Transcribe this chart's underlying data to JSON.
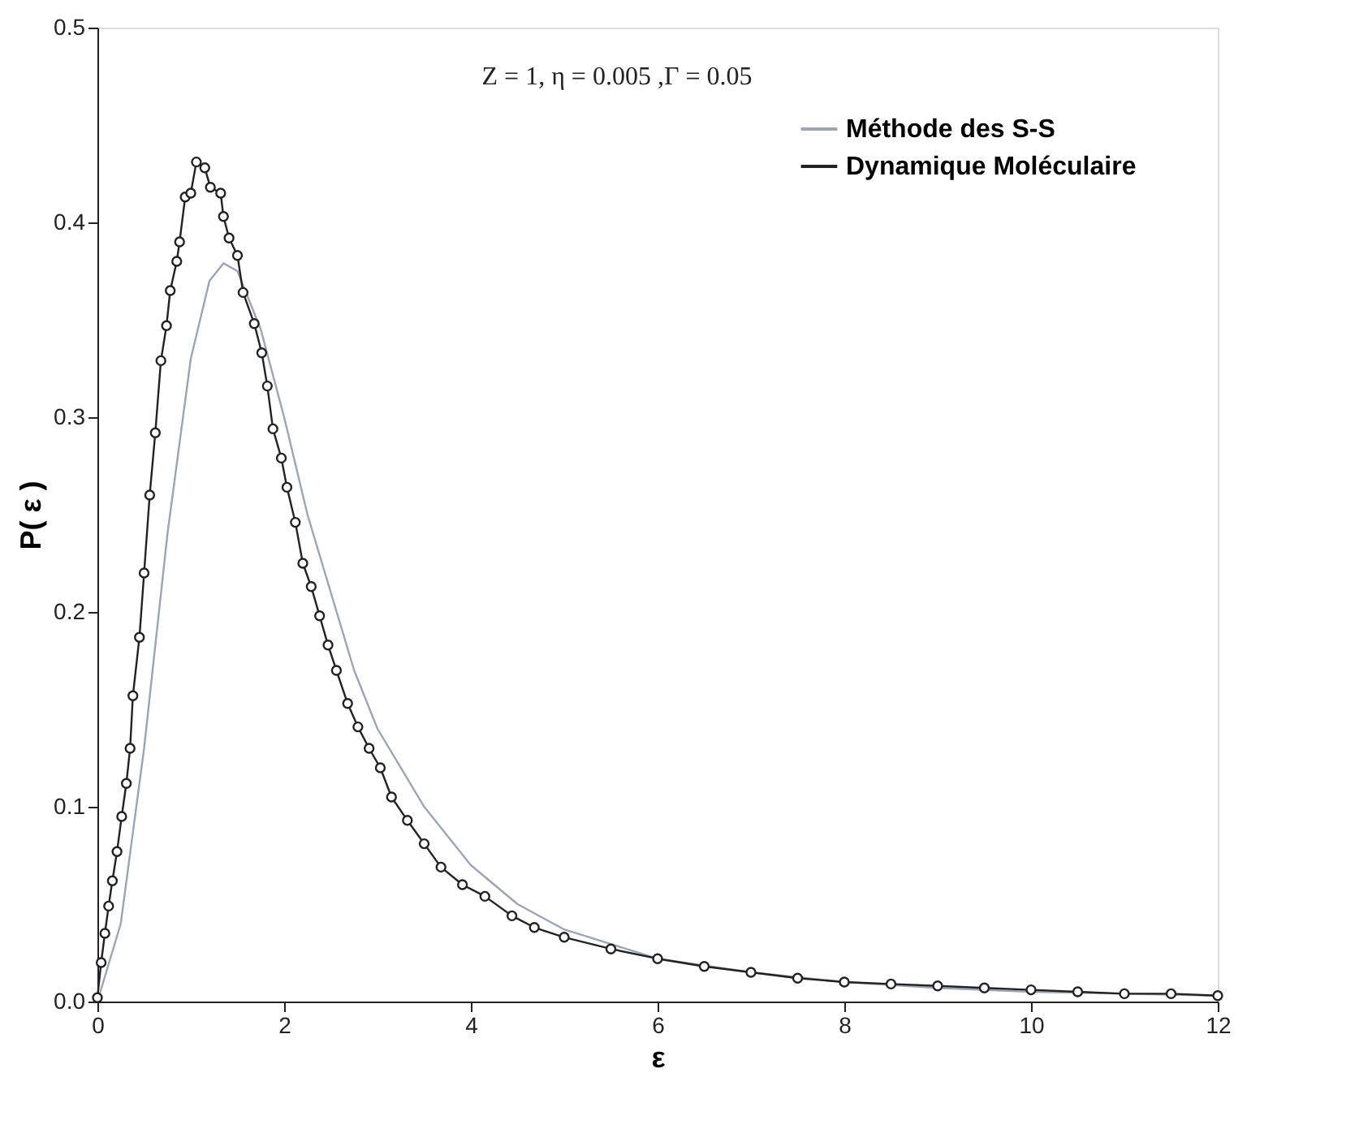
{
  "chart_data": {
    "type": "line",
    "xlabel": "ε",
    "ylabel": "P( ε )",
    "annotations": [
      "Z = 1,    η = 0.005   ,Γ = 0.05"
    ],
    "xlim": [
      0,
      12
    ],
    "xticks": [
      0,
      2,
      4,
      6,
      8,
      10,
      12
    ],
    "ylim": [
      0,
      0.5
    ],
    "yticks": [
      {
        "value": 0,
        "label": "0.0"
      },
      {
        "value": 0.1,
        "label": "0.1"
      },
      {
        "value": 0.2,
        "label": "0.2"
      },
      {
        "value": 0.3,
        "label": "0.3"
      },
      {
        "value": 0.4,
        "label": "0.4"
      },
      {
        "value": 0.5,
        "label": "0.5"
      }
    ],
    "grid": false,
    "legend": "top right",
    "series": [
      {
        "name": "Méthode des S-S",
        "color": "#9aa5b8",
        "marker": "none",
        "line_style": "solid",
        "x": [
          0,
          0.25,
          0.5,
          0.75,
          1.0,
          1.2,
          1.35,
          1.5,
          1.75,
          2.0,
          2.25,
          2.5,
          2.75,
          3.0,
          3.5,
          4,
          4.5,
          5,
          6,
          7,
          8,
          9,
          10,
          11,
          12
        ],
        "values": [
          0,
          0.04,
          0.13,
          0.24,
          0.33,
          0.37,
          0.379,
          0.375,
          0.345,
          0.3,
          0.25,
          0.21,
          0.17,
          0.14,
          0.1,
          0.07,
          0.05,
          0.037,
          0.022,
          0.015,
          0.01,
          0.007,
          0.005,
          0.004,
          0.003
        ]
      },
      {
        "name": "Dynamique Moléculaire",
        "color": "#222222",
        "marker": "circle",
        "line_style": "solid",
        "x": [
          0,
          0.04,
          0.08,
          0.12,
          0.16,
          0.21,
          0.26,
          0.31,
          0.35,
          0.38,
          0.45,
          0.5,
          0.56,
          0.62,
          0.68,
          0.74,
          0.78,
          0.85,
          0.88,
          0.94,
          1.0,
          1.06,
          1.15,
          1.21,
          1.32,
          1.35,
          1.41,
          1.5,
          1.56,
          1.68,
          1.76,
          1.82,
          1.88,
          1.97,
          2.03,
          2.12,
          2.2,
          2.29,
          2.38,
          2.47,
          2.56,
          2.68,
          2.79,
          2.91,
          3.03,
          3.15,
          3.32,
          3.5,
          3.68,
          3.91,
          4.15,
          4.44,
          4.68,
          5,
          5.5,
          6,
          6.5,
          7,
          7.5,
          8,
          8.5,
          9,
          9.5,
          10,
          10.5,
          11,
          11.5,
          12
        ],
        "values": [
          0.002,
          0.02,
          0.035,
          0.049,
          0.062,
          0.077,
          0.095,
          0.112,
          0.13,
          0.157,
          0.187,
          0.22,
          0.26,
          0.292,
          0.329,
          0.347,
          0.365,
          0.38,
          0.39,
          0.413,
          0.415,
          0.431,
          0.428,
          0.418,
          0.415,
          0.403,
          0.392,
          0.383,
          0.364,
          0.348,
          0.333,
          0.316,
          0.294,
          0.279,
          0.264,
          0.246,
          0.225,
          0.213,
          0.198,
          0.183,
          0.17,
          0.153,
          0.141,
          0.13,
          0.12,
          0.105,
          0.093,
          0.081,
          0.069,
          0.06,
          0.054,
          0.044,
          0.038,
          0.033,
          0.027,
          0.022,
          0.018,
          0.015,
          0.012,
          0.01,
          0.009,
          0.008,
          0.007,
          0.006,
          0.005,
          0.004,
          0.004,
          0.003
        ]
      }
    ]
  }
}
